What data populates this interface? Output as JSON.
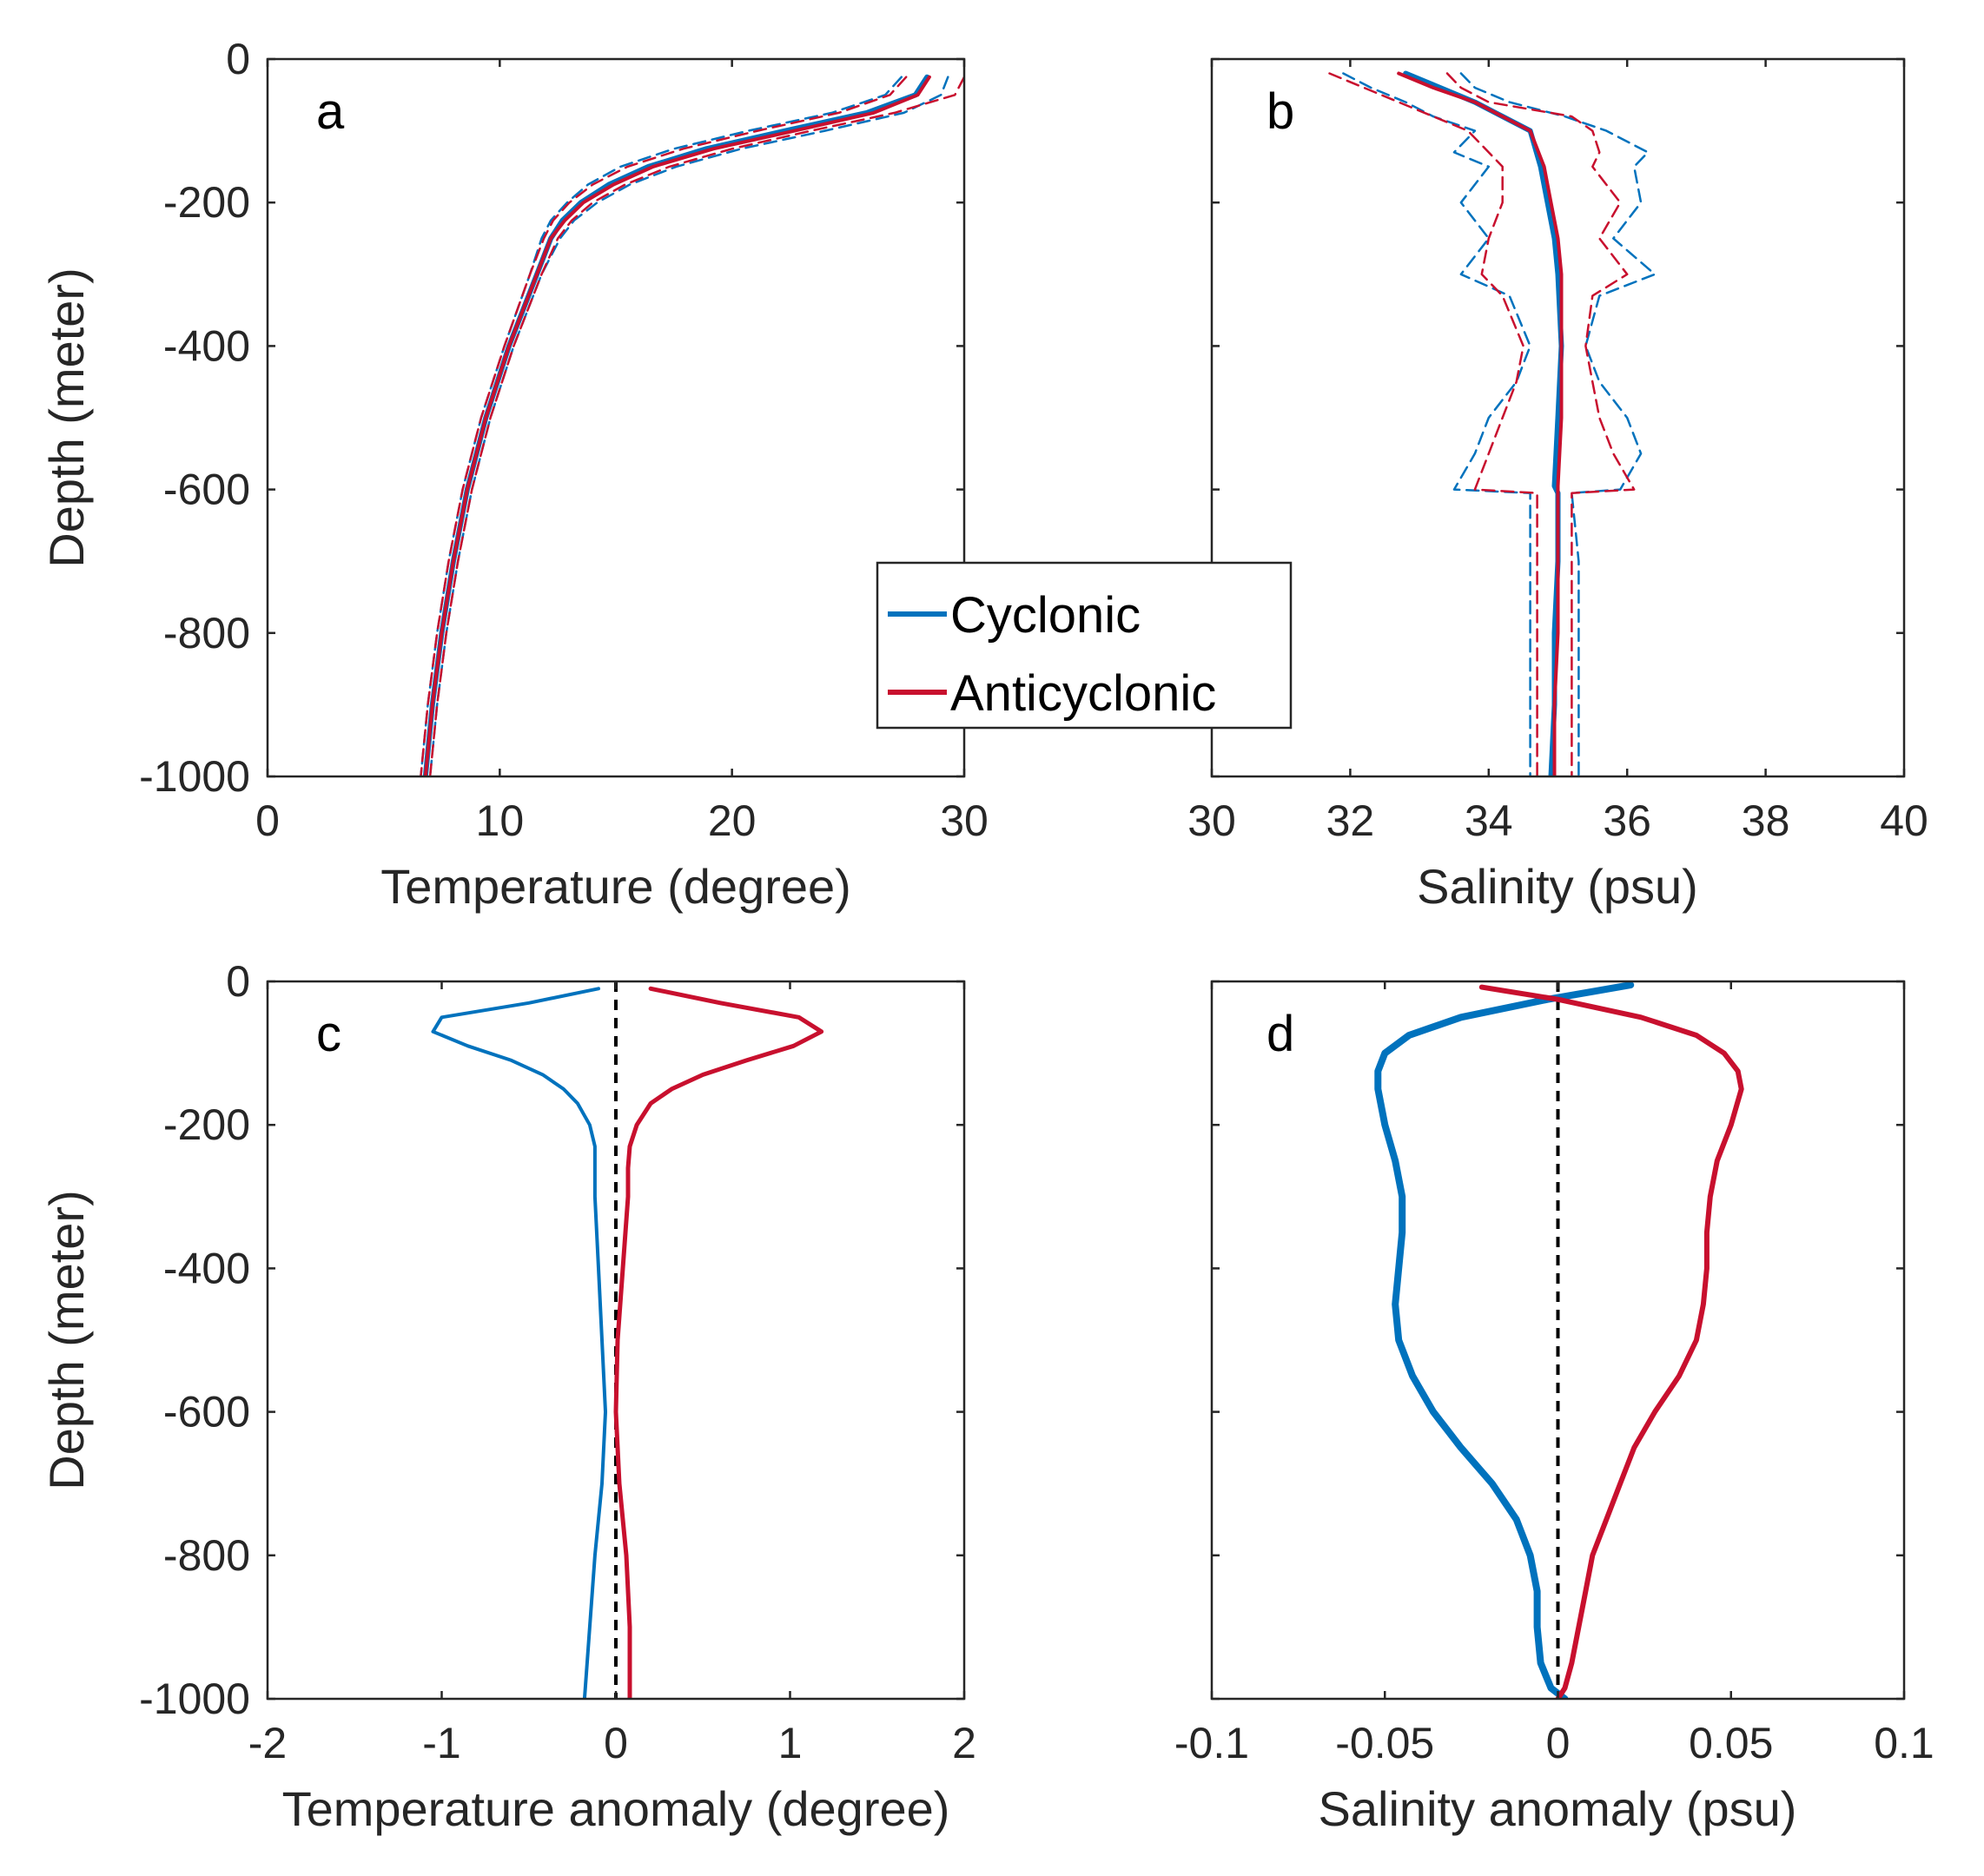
{
  "figure": {
    "legend": {
      "entries": [
        {
          "label": "Cyclonic",
          "color": "#0072BD"
        },
        {
          "label": "Anticyclonic",
          "color": "#C8102E"
        }
      ]
    }
  },
  "chart_data": [
    {
      "id": "a",
      "type": "line",
      "panel_label": "a",
      "xlabel": "Temperature (degree)",
      "ylabel": "Depth (meter)",
      "xlim": [
        0,
        30
      ],
      "ylim": [
        -1000,
        0
      ],
      "xticks": [
        0,
        10,
        20,
        30
      ],
      "xtick_labels": [
        "0",
        "10",
        "20",
        "30"
      ],
      "yticks": [
        0,
        -200,
        -400,
        -600,
        -800,
        -1000
      ],
      "ytick_labels": [
        "0",
        "-200",
        "-400",
        "-600",
        "-800",
        "-1000"
      ],
      "grid": false,
      "depth": [
        -25,
        -50,
        -75,
        -100,
        -125,
        -150,
        -175,
        -200,
        -225,
        -250,
        -300,
        -400,
        -500,
        -600,
        -700,
        -800,
        -900,
        -1000
      ],
      "series": [
        {
          "name": "Cyclonic mean",
          "color": "#0072BD",
          "style": "solid",
          "width": 6,
          "values": [
            28.4,
            27.9,
            25.8,
            22.3,
            18.9,
            16.4,
            14.7,
            13.5,
            12.7,
            12.2,
            11.6,
            10.4,
            9.4,
            8.6,
            8.0,
            7.5,
            7.1,
            6.8
          ]
        },
        {
          "name": "Anticyclonic mean",
          "color": "#C8102E",
          "style": "solid",
          "width": 4,
          "values": [
            28.5,
            28.0,
            26.1,
            22.7,
            19.2,
            16.6,
            14.9,
            13.6,
            12.8,
            12.2,
            11.6,
            10.4,
            9.4,
            8.6,
            8.0,
            7.5,
            7.1,
            6.8
          ]
        },
        {
          "name": "Cyclonic upper bound",
          "color": "#0072BD",
          "style": "dashed",
          "width": 2.5,
          "values": [
            29.3,
            29.0,
            27.4,
            24.0,
            20.4,
            17.6,
            15.6,
            14.2,
            13.2,
            12.6,
            11.8,
            10.6,
            9.6,
            8.8,
            8.2,
            7.7,
            7.3,
            7.0
          ]
        },
        {
          "name": "Cyclonic lower bound",
          "color": "#0072BD",
          "style": "dashed",
          "width": 2.5,
          "values": [
            27.3,
            26.6,
            24.3,
            20.7,
            17.5,
            15.2,
            13.8,
            12.9,
            12.2,
            11.8,
            11.3,
            10.2,
            9.2,
            8.4,
            7.8,
            7.3,
            6.9,
            6.6
          ]
        },
        {
          "name": "Anticyclonic upper bound",
          "color": "#C8102E",
          "style": "dashed",
          "width": 2.5,
          "values": [
            30.0,
            29.6,
            27.0,
            23.4,
            20.0,
            17.3,
            15.4,
            14.0,
            13.1,
            12.5,
            11.8,
            10.6,
            9.6,
            8.8,
            8.2,
            7.7,
            7.3,
            7.0
          ]
        },
        {
          "name": "Anticyclonic lower bound",
          "color": "#C8102E",
          "style": "dashed",
          "width": 2.5,
          "values": [
            27.5,
            26.8,
            24.6,
            21.1,
            17.9,
            15.5,
            14.0,
            13.0,
            12.3,
            11.9,
            11.3,
            10.2,
            9.2,
            8.4,
            7.8,
            7.3,
            6.9,
            6.6
          ]
        }
      ]
    },
    {
      "id": "b",
      "type": "line",
      "panel_label": "b",
      "xlabel": "Salinity (psu)",
      "ylabel": "",
      "xlim": [
        30,
        40
      ],
      "ylim": [
        -1000,
        0
      ],
      "xticks": [
        30,
        32,
        34,
        36,
        38,
        40
      ],
      "xtick_labels": [
        "30",
        "32",
        "34",
        "36",
        "38",
        "40"
      ],
      "yticks": [
        0,
        -200,
        -400,
        -600,
        -800,
        -1000
      ],
      "ytick_labels": [],
      "grid": false,
      "series": [
        {
          "name": "Cyclonic mean",
          "color": "#0072BD",
          "style": "solid",
          "width": 6,
          "depth": [
            -20,
            -40,
            -60,
            -80,
            -100,
            -150,
            -200,
            -250,
            -300,
            -400,
            -500,
            -595,
            -605,
            -700,
            -800,
            -900,
            -1000
          ],
          "values": [
            32.8,
            33.3,
            33.8,
            34.2,
            34.6,
            34.75,
            34.85,
            34.95,
            35.0,
            35.05,
            35.0,
            34.95,
            35.0,
            35.0,
            34.95,
            34.95,
            34.9
          ]
        },
        {
          "name": "Anticyclonic mean",
          "color": "#C8102E",
          "style": "solid",
          "width": 4,
          "depth": [
            -20,
            -40,
            -60,
            -80,
            -100,
            -150,
            -200,
            -250,
            -300,
            -400,
            -500,
            -595,
            -605,
            -700,
            -800,
            -900,
            -1000
          ],
          "values": [
            32.7,
            33.2,
            33.8,
            34.2,
            34.6,
            34.8,
            34.9,
            35.0,
            35.05,
            35.05,
            35.05,
            35.0,
            35.0,
            35.0,
            35.0,
            34.95,
            34.95
          ]
        },
        {
          "name": "Cyclonic upper bound",
          "color": "#0072BD",
          "style": "dashed",
          "width": 2.5,
          "depth": [
            -20,
            -40,
            -60,
            -80,
            -100,
            -130,
            -150,
            -200,
            -250,
            -300,
            -330,
            -400,
            -450,
            -500,
            -550,
            -600,
            -605,
            -700,
            -800,
            -1000
          ],
          "values": [
            33.6,
            33.8,
            34.3,
            35.1,
            35.7,
            36.3,
            36.1,
            36.2,
            35.8,
            36.4,
            35.6,
            35.4,
            35.6,
            36.0,
            36.2,
            35.9,
            35.2,
            35.3,
            35.3,
            35.3
          ]
        },
        {
          "name": "Cyclonic lower bound",
          "color": "#0072BD",
          "style": "dashed",
          "width": 2.5,
          "depth": [
            -20,
            -40,
            -60,
            -80,
            -100,
            -130,
            -150,
            -200,
            -250,
            -300,
            -330,
            -400,
            -450,
            -500,
            -550,
            -600,
            -605,
            -700,
            -800,
            -1000
          ],
          "values": [
            31.9,
            32.3,
            32.8,
            33.2,
            33.8,
            33.5,
            34.0,
            33.6,
            34.0,
            33.6,
            34.3,
            34.6,
            34.4,
            34.0,
            33.8,
            33.5,
            34.6,
            34.6,
            34.6,
            34.6
          ]
        },
        {
          "name": "Anticyclonic upper bound",
          "color": "#C8102E",
          "style": "dashed",
          "width": 2.5,
          "depth": [
            -20,
            -40,
            -60,
            -80,
            -100,
            -130,
            -150,
            -200,
            -250,
            -300,
            -330,
            -400,
            -450,
            -500,
            -550,
            -600,
            -605,
            -700,
            -800,
            -1000
          ],
          "values": [
            33.4,
            33.6,
            34.0,
            35.2,
            35.5,
            35.6,
            35.5,
            35.9,
            35.6,
            36.0,
            35.5,
            35.4,
            35.5,
            35.6,
            35.8,
            36.1,
            35.2,
            35.2,
            35.2,
            35.2
          ]
        },
        {
          "name": "Anticyclonic lower bound",
          "color": "#C8102E",
          "style": "dashed",
          "width": 2.5,
          "depth": [
            -20,
            -40,
            -60,
            -80,
            -100,
            -130,
            -150,
            -200,
            -250,
            -300,
            -330,
            -400,
            -450,
            -500,
            -550,
            -600,
            -605,
            -700,
            -800,
            -1000
          ],
          "values": [
            31.7,
            32.2,
            32.7,
            33.2,
            33.7,
            34.0,
            34.2,
            34.2,
            34.0,
            33.9,
            34.2,
            34.5,
            34.4,
            34.2,
            34.0,
            33.8,
            34.7,
            34.7,
            34.7,
            34.7
          ]
        }
      ]
    },
    {
      "id": "c",
      "type": "line",
      "panel_label": "c",
      "xlabel": "Temperature anomaly (degree)",
      "ylabel": "Depth (meter)",
      "xlim": [
        -2,
        2
      ],
      "ylim": [
        -1000,
        0
      ],
      "xticks": [
        -2,
        -1,
        0,
        1,
        2
      ],
      "xtick_labels": [
        "-2",
        "-1",
        "0",
        "1",
        "2"
      ],
      "yticks": [
        0,
        -200,
        -400,
        -600,
        -800,
        -1000
      ],
      "ytick_labels": [
        "0",
        "-200",
        "-400",
        "-600",
        "-800",
        "-1000"
      ],
      "grid": false,
      "reference_line": {
        "x": 0,
        "style": "dashed",
        "color": "#000000"
      },
      "series": [
        {
          "name": "Cyclonic",
          "color": "#0072BD",
          "style": "solid",
          "width": 4,
          "depth": [
            -10,
            -30,
            -50,
            -70,
            -90,
            -110,
            -130,
            -150,
            -170,
            -200,
            -230,
            -260,
            -300,
            -400,
            -500,
            -600,
            -700,
            -800,
            -900,
            -1000
          ],
          "values": [
            -0.1,
            -0.5,
            -1.0,
            -1.05,
            -0.85,
            -0.6,
            -0.42,
            -0.3,
            -0.22,
            -0.15,
            -0.12,
            -0.12,
            -0.12,
            -0.1,
            -0.08,
            -0.06,
            -0.08,
            -0.12,
            -0.15,
            -0.18
          ]
        },
        {
          "name": "Anticyclonic",
          "color": "#C8102E",
          "style": "solid",
          "width": 5,
          "depth": [
            -10,
            -30,
            -50,
            -70,
            -90,
            -110,
            -130,
            -150,
            -170,
            -200,
            -230,
            -260,
            -300,
            -400,
            -500,
            -600,
            -700,
            -800,
            -900,
            -1000
          ],
          "values": [
            0.2,
            0.6,
            1.05,
            1.18,
            1.02,
            0.75,
            0.5,
            0.32,
            0.2,
            0.12,
            0.08,
            0.07,
            0.07,
            0.04,
            0.01,
            0.0,
            0.02,
            0.06,
            0.08,
            0.08
          ]
        }
      ]
    },
    {
      "id": "d",
      "type": "line",
      "panel_label": "d",
      "xlabel": "Salinity anomaly (psu)",
      "ylabel": "",
      "xlim": [
        -0.1,
        0.1
      ],
      "ylim": [
        -1000,
        0
      ],
      "xticks": [
        -0.1,
        -0.05,
        0,
        0.05,
        0.1
      ],
      "xtick_labels": [
        "-0.1",
        "-0.05",
        "0",
        "0.05",
        "0.1"
      ],
      "yticks": [
        0,
        -200,
        -400,
        -600,
        -800,
        -1000
      ],
      "ytick_labels": [],
      "grid": false,
      "reference_line": {
        "x": 0,
        "style": "dashed",
        "color": "#000000"
      },
      "series": [
        {
          "name": "Cyclonic",
          "color": "#0072BD",
          "style": "solid",
          "width": 8,
          "depth": [
            -5,
            -25,
            -50,
            -75,
            -100,
            -125,
            -150,
            -200,
            -250,
            -300,
            -350,
            -400,
            -450,
            -500,
            -550,
            -600,
            -650,
            -700,
            -750,
            -800,
            -850,
            -900,
            -950,
            -985,
            -1000
          ],
          "values": [
            0.021,
            -0.003,
            -0.028,
            -0.043,
            -0.05,
            -0.052,
            -0.052,
            -0.05,
            -0.047,
            -0.045,
            -0.045,
            -0.046,
            -0.047,
            -0.046,
            -0.042,
            -0.036,
            -0.028,
            -0.019,
            -0.012,
            -0.008,
            -0.006,
            -0.006,
            -0.005,
            -0.002,
            0.002
          ]
        },
        {
          "name": "Anticyclonic",
          "color": "#C8102E",
          "style": "solid",
          "width": 6,
          "depth": [
            -8,
            -25,
            -50,
            -75,
            -100,
            -125,
            -150,
            -200,
            -250,
            -300,
            -350,
            -400,
            -450,
            -500,
            -550,
            -600,
            -650,
            -700,
            -750,
            -800,
            -850,
            -900,
            -950,
            -985,
            -1000
          ],
          "values": [
            -0.022,
            0.0,
            0.024,
            0.04,
            0.048,
            0.052,
            0.053,
            0.05,
            0.046,
            0.044,
            0.043,
            0.043,
            0.042,
            0.04,
            0.035,
            0.028,
            0.022,
            0.018,
            0.014,
            0.01,
            0.008,
            0.006,
            0.004,
            0.002,
            0.0
          ]
        }
      ]
    }
  ]
}
